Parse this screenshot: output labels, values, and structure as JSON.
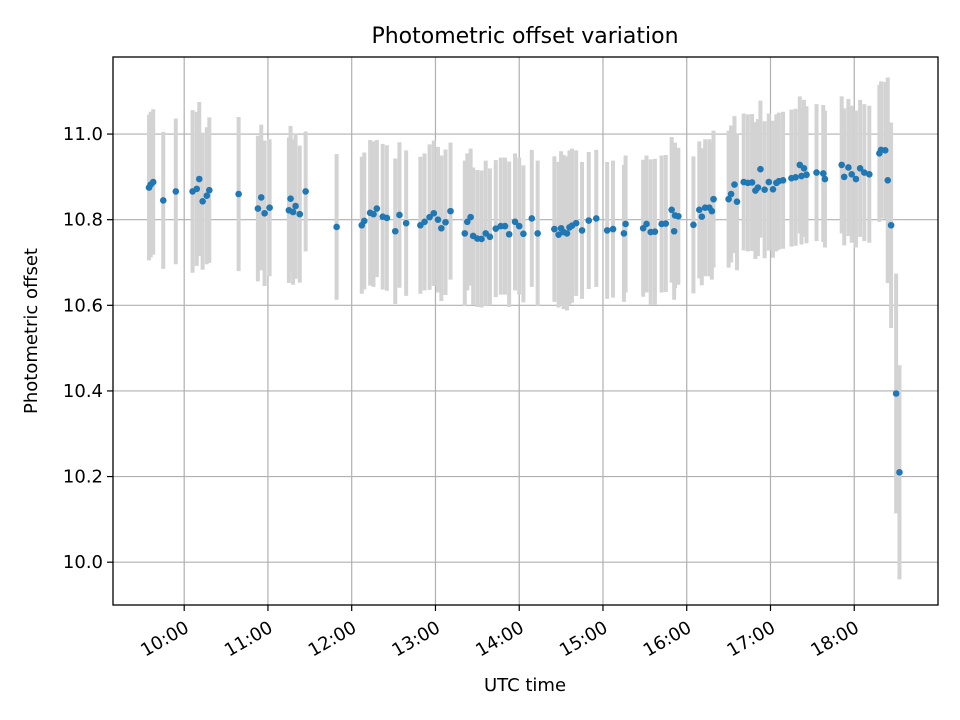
{
  "chart_data": {
    "type": "scatter",
    "title": "Photometric offset variation",
    "xlabel": "UTC time",
    "ylabel": "Photometric offset",
    "x_unit": "hours (UTC)",
    "xlim": [
      9.15,
      19.0
    ],
    "ylim": [
      9.9,
      11.18
    ],
    "x_ticks": [
      10,
      11,
      12,
      13,
      14,
      15,
      16,
      17,
      18
    ],
    "x_tick_labels": [
      "10:00",
      "11:00",
      "12:00",
      "13:00",
      "14:00",
      "15:00",
      "16:00",
      "17:00",
      "18:00"
    ],
    "y_ticks": [
      10.0,
      10.2,
      10.4,
      10.6,
      10.8,
      11.0
    ],
    "y_tick_labels": [
      "10.0",
      "10.2",
      "10.4",
      "10.6",
      "10.8",
      "11.0"
    ],
    "grid": true,
    "point_color": "#1f77b4",
    "errorbar_color": "#d3d3d3",
    "series": [
      {
        "points": [
          [
            9.58,
            10.875,
            0.17
          ],
          [
            9.6,
            10.882,
            0.17
          ],
          [
            9.63,
            10.888,
            0.17
          ],
          [
            9.75,
            10.845,
            0.16
          ],
          [
            9.9,
            10.866,
            0.17
          ],
          [
            10.1,
            10.866,
            0.19
          ],
          [
            10.15,
            10.872,
            0.18
          ],
          [
            10.18,
            10.895,
            0.18
          ],
          [
            10.22,
            10.843,
            0.16
          ],
          [
            10.27,
            10.856,
            0.16
          ],
          [
            10.3,
            10.869,
            0.17
          ],
          [
            10.65,
            10.86,
            0.18
          ],
          [
            10.88,
            10.826,
            0.17
          ],
          [
            10.92,
            10.852,
            0.17
          ],
          [
            10.96,
            10.815,
            0.17
          ],
          [
            11.02,
            10.828,
            0.16
          ],
          [
            11.25,
            10.822,
            0.17
          ],
          [
            11.27,
            10.849,
            0.17
          ],
          [
            11.3,
            10.818,
            0.17
          ],
          [
            11.33,
            10.832,
            0.17
          ],
          [
            11.38,
            10.813,
            0.16
          ],
          [
            11.45,
            10.866,
            0.14
          ],
          [
            11.82,
            10.783,
            0.17
          ],
          [
            12.12,
            10.787,
            0.16
          ],
          [
            12.15,
            10.797,
            0.16
          ],
          [
            12.22,
            10.816,
            0.17
          ],
          [
            12.26,
            10.813,
            0.17
          ],
          [
            12.3,
            10.826,
            0.16
          ],
          [
            12.37,
            10.807,
            0.17
          ],
          [
            12.42,
            10.804,
            0.17
          ],
          [
            12.52,
            10.773,
            0.17
          ],
          [
            12.57,
            10.811,
            0.17
          ],
          [
            12.65,
            10.792,
            0.17
          ],
          [
            12.82,
            10.787,
            0.16
          ],
          [
            12.87,
            10.795,
            0.16
          ],
          [
            12.93,
            10.806,
            0.17
          ],
          [
            12.98,
            10.815,
            0.17
          ],
          [
            13.03,
            10.8,
            0.17
          ],
          [
            13.07,
            10.78,
            0.17
          ],
          [
            13.12,
            10.794,
            0.17
          ],
          [
            13.18,
            10.82,
            0.16
          ],
          [
            13.35,
            10.768,
            0.17
          ],
          [
            13.38,
            10.795,
            0.16
          ],
          [
            13.42,
            10.806,
            0.16
          ],
          [
            13.45,
            10.762,
            0.16
          ],
          [
            13.5,
            10.756,
            0.16
          ],
          [
            13.55,
            10.755,
            0.16
          ],
          [
            13.6,
            10.768,
            0.17
          ],
          [
            13.65,
            10.76,
            0.16
          ],
          [
            13.72,
            10.779,
            0.16
          ],
          [
            13.78,
            10.785,
            0.16
          ],
          [
            13.83,
            10.785,
            0.16
          ],
          [
            13.88,
            10.766,
            0.17
          ],
          [
            13.95,
            10.795,
            0.16
          ],
          [
            14.0,
            10.785,
            0.16
          ],
          [
            14.05,
            10.767,
            0.16
          ],
          [
            14.15,
            10.803,
            0.16
          ],
          [
            14.22,
            10.768,
            0.17
          ],
          [
            14.42,
            10.778,
            0.17
          ],
          [
            14.47,
            10.765,
            0.17
          ],
          [
            14.5,
            10.78,
            0.18
          ],
          [
            14.53,
            10.771,
            0.18
          ],
          [
            14.57,
            10.768,
            0.18
          ],
          [
            14.6,
            10.782,
            0.18
          ],
          [
            14.63,
            10.786,
            0.18
          ],
          [
            14.68,
            10.792,
            0.17
          ],
          [
            14.75,
            10.775,
            0.16
          ],
          [
            14.83,
            10.798,
            0.16
          ],
          [
            14.92,
            10.803,
            0.16
          ],
          [
            15.05,
            10.775,
            0.16
          ],
          [
            15.12,
            10.778,
            0.16
          ],
          [
            15.25,
            10.768,
            0.16
          ],
          [
            15.27,
            10.79,
            0.16
          ],
          [
            15.48,
            10.78,
            0.16
          ],
          [
            15.52,
            10.79,
            0.16
          ],
          [
            15.57,
            10.771,
            0.17
          ],
          [
            15.62,
            10.772,
            0.17
          ],
          [
            15.7,
            10.79,
            0.16
          ],
          [
            15.75,
            10.791,
            0.16
          ],
          [
            15.82,
            10.823,
            0.17
          ],
          [
            15.86,
            10.81,
            0.17
          ],
          [
            15.9,
            10.808,
            0.16
          ],
          [
            15.85,
            10.773,
            0.16
          ],
          [
            16.08,
            10.788,
            0.16
          ],
          [
            16.15,
            10.823,
            0.16
          ],
          [
            16.18,
            10.807,
            0.16
          ],
          [
            16.22,
            10.828,
            0.16
          ],
          [
            16.27,
            10.828,
            0.16
          ],
          [
            16.3,
            10.82,
            0.16
          ],
          [
            16.32,
            10.848,
            0.16
          ],
          [
            16.5,
            10.848,
            0.16
          ],
          [
            16.53,
            10.86,
            0.16
          ],
          [
            16.57,
            10.882,
            0.16
          ],
          [
            16.6,
            10.842,
            0.16
          ],
          [
            16.68,
            10.888,
            0.16
          ],
          [
            16.73,
            10.886,
            0.16
          ],
          [
            16.78,
            10.887,
            0.16
          ],
          [
            16.82,
            10.868,
            0.16
          ],
          [
            16.85,
            10.875,
            0.16
          ],
          [
            16.88,
            10.918,
            0.16
          ],
          [
            16.93,
            10.87,
            0.16
          ],
          [
            16.98,
            10.888,
            0.16
          ],
          [
            17.03,
            10.871,
            0.16
          ],
          [
            17.07,
            10.886,
            0.16
          ],
          [
            17.1,
            10.89,
            0.16
          ],
          [
            17.15,
            10.892,
            0.16
          ],
          [
            17.25,
            10.897,
            0.16
          ],
          [
            17.3,
            10.899,
            0.16
          ],
          [
            17.35,
            10.928,
            0.16
          ],
          [
            17.37,
            10.902,
            0.16
          ],
          [
            17.4,
            10.92,
            0.16
          ],
          [
            17.43,
            10.905,
            0.16
          ],
          [
            17.55,
            10.91,
            0.16
          ],
          [
            17.63,
            10.908,
            0.16
          ],
          [
            17.65,
            10.895,
            0.16
          ],
          [
            17.85,
            10.928,
            0.16
          ],
          [
            17.88,
            10.9,
            0.16
          ],
          [
            17.93,
            10.922,
            0.16
          ],
          [
            17.97,
            10.906,
            0.16
          ],
          [
            18.02,
            10.895,
            0.16
          ],
          [
            18.07,
            10.92,
            0.16
          ],
          [
            18.12,
            10.91,
            0.16
          ],
          [
            18.18,
            10.906,
            0.16
          ],
          [
            18.3,
            10.955,
            0.16
          ],
          [
            18.32,
            10.963,
            0.16
          ],
          [
            18.37,
            10.962,
            0.16
          ],
          [
            18.4,
            10.892,
            0.24
          ],
          [
            18.44,
            10.787,
            0.24
          ],
          [
            18.5,
            10.394,
            0.28
          ],
          [
            18.54,
            10.21,
            0.25
          ]
        ]
      }
    ]
  }
}
